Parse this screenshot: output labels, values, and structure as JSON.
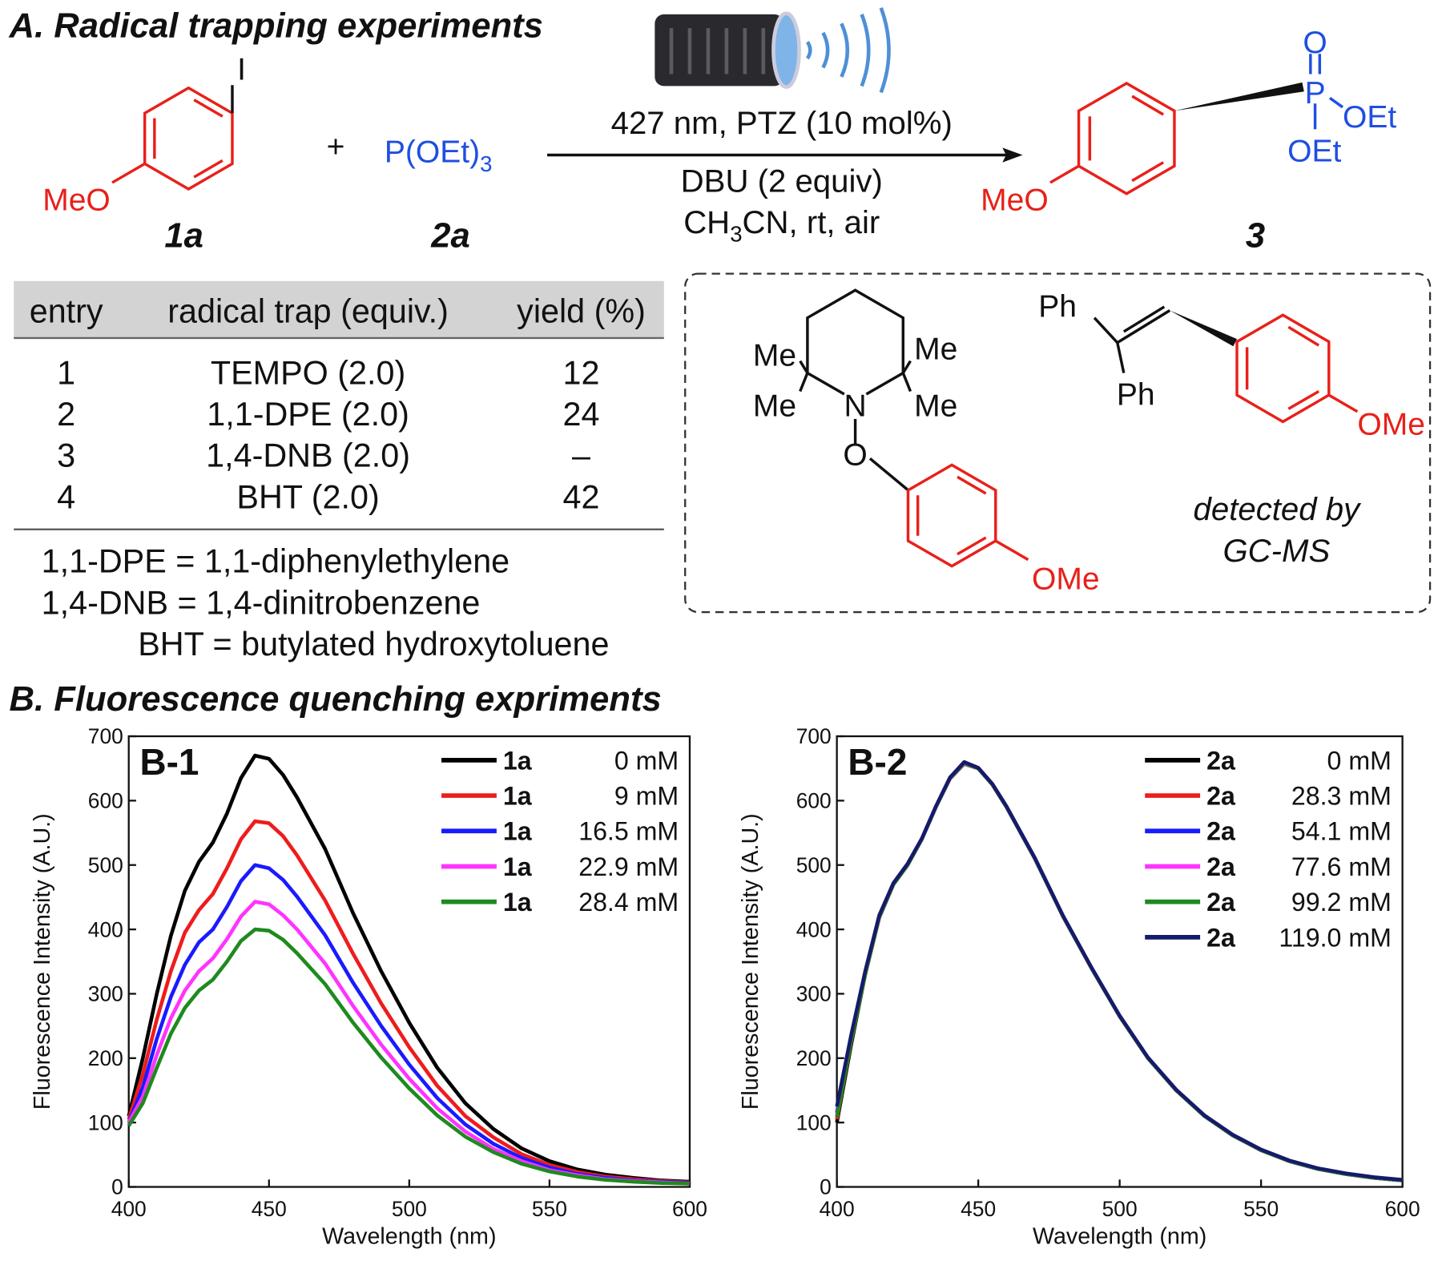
{
  "scheme": {
    "title": "A. Radical trapping experiments",
    "substrate": {
      "leaving_group": "I",
      "substituent": "MeO",
      "label": "1a"
    },
    "plus": "+",
    "reagent": {
      "formula": "P(OEt)",
      "subscript": "3",
      "label": "2a"
    },
    "conditions": {
      "line1": "427 nm, PTZ (10 mol%)",
      "line2": "DBU (2 equiv)",
      "line3_a": "CH",
      "line3_sub": "3",
      "line3_b": "CN, rt, air"
    },
    "product": {
      "oxygen": "O",
      "phosphorus": "P",
      "ethoxy1": "OEt",
      "ethoxy2": "OEt",
      "substituent": "MeO",
      "label": "3"
    }
  },
  "table": {
    "header": [
      "entry",
      "radical trap (equiv.)",
      "yield (%)"
    ],
    "rows": [
      [
        1,
        "TEMPO (2.0)",
        12
      ],
      [
        2,
        "1,1-DPE (2.0)",
        24
      ],
      [
        3,
        "1,4-DNB (2.0)",
        "–"
      ],
      [
        4,
        "BHT (2.0)",
        42
      ]
    ],
    "notes": [
      "1,1-DPE = 1,1-diphenylethylene",
      "1,4-DNB = 1,4-dinitrobenzene",
      "BHT = butylated hydroxytoluene"
    ]
  },
  "adducts": {
    "tempo": {
      "methyls": [
        "Me",
        "Me",
        "Me",
        "Me"
      ],
      "nitrogen": "N",
      "oxygen": "O",
      "methoxy": "OMe"
    },
    "dpe": {
      "phenyls": [
        "Ph",
        "Ph"
      ],
      "methoxy": "OMe"
    },
    "note": [
      "detected by",
      "GC-MS"
    ]
  },
  "section_b_title": "B. Fluorescence quenching expriments",
  "chart_data": [
    {
      "type": "line",
      "panel_label": "B-1",
      "xlabel": "Wavelength (nm)",
      "ylabel": "Fluorescence Intensity (A.U.)",
      "xlim": [
        400,
        600
      ],
      "ylim": [
        0,
        700
      ],
      "xticks": [
        400,
        450,
        500,
        550,
        600
      ],
      "yticks": [
        0,
        100,
        200,
        300,
        400,
        500,
        600,
        700
      ],
      "x": [
        400,
        405,
        410,
        415,
        420,
        425,
        430,
        435,
        440,
        445,
        450,
        455,
        460,
        470,
        480,
        490,
        500,
        510,
        520,
        530,
        540,
        550,
        560,
        570,
        580,
        590,
        600
      ],
      "series": [
        {
          "name": "1a",
          "label": "0 mM",
          "color": "#000000",
          "values": [
            110,
            200,
            300,
            390,
            460,
            505,
            535,
            580,
            635,
            670,
            665,
            640,
            605,
            525,
            425,
            335,
            255,
            185,
            130,
            90,
            60,
            40,
            27,
            19,
            14,
            10,
            8
          ]
        },
        {
          "name": "1a",
          "label": "9 mM",
          "color": "#ee1c1c",
          "values": [
            105,
            175,
            260,
            335,
            395,
            430,
            455,
            495,
            540,
            568,
            565,
            545,
            515,
            445,
            362,
            285,
            217,
            157,
            110,
            77,
            51,
            34,
            23,
            16,
            12,
            9,
            7
          ]
        },
        {
          "name": "1a",
          "label": "16.5 mM",
          "color": "#1a1aff",
          "values": [
            100,
            155,
            230,
            295,
            345,
            380,
            400,
            435,
            475,
            500,
            495,
            477,
            451,
            391,
            317,
            250,
            190,
            138,
            97,
            67,
            45,
            30,
            20,
            14,
            10,
            8,
            6
          ]
        },
        {
          "name": "1a",
          "label": "22.9 mM",
          "color": "#ff33ff",
          "values": [
            100,
            140,
            205,
            262,
            305,
            335,
            355,
            385,
            420,
            443,
            439,
            422,
            400,
            347,
            281,
            221,
            168,
            122,
            86,
            59,
            40,
            26,
            18,
            12,
            9,
            7,
            5
          ]
        },
        {
          "name": "1a",
          "label": "28.4 mM",
          "color": "#1e8a1e",
          "values": [
            95,
            130,
            185,
            238,
            278,
            305,
            322,
            350,
            382,
            400,
            398,
            384,
            363,
            315,
            255,
            201,
            153,
            111,
            78,
            54,
            36,
            24,
            16,
            11,
            8,
            6,
            5
          ]
        }
      ]
    },
    {
      "type": "line",
      "panel_label": "B-2",
      "xlabel": "Wavelength (nm)",
      "ylabel": "Fluorescence Intensity (A.U.)",
      "xlim": [
        400,
        600
      ],
      "ylim": [
        0,
        700
      ],
      "xticks": [
        400,
        450,
        500,
        550,
        600
      ],
      "yticks": [
        0,
        100,
        200,
        300,
        400,
        500,
        600,
        700
      ],
      "x": [
        400,
        405,
        410,
        415,
        420,
        425,
        430,
        435,
        440,
        445,
        450,
        455,
        460,
        470,
        480,
        490,
        500,
        510,
        520,
        530,
        540,
        550,
        560,
        570,
        580,
        590,
        600
      ],
      "series": [
        {
          "name": "2a",
          "label": "0 mM",
          "color": "#000000",
          "values": [
            100,
            220,
            330,
            420,
            470,
            500,
            540,
            590,
            635,
            658,
            650,
            625,
            590,
            510,
            420,
            340,
            265,
            200,
            150,
            110,
            80,
            57,
            40,
            28,
            20,
            14,
            10
          ]
        },
        {
          "name": "2a",
          "label": "28.3 mM",
          "color": "#ee1c1c",
          "values": [
            105,
            225,
            330,
            418,
            470,
            500,
            540,
            590,
            634,
            657,
            650,
            625,
            590,
            510,
            420,
            340,
            265,
            200,
            150,
            110,
            80,
            57,
            40,
            28,
            20,
            14,
            10
          ]
        },
        {
          "name": "2a",
          "label": "54.1 mM",
          "color": "#1a1aff",
          "values": [
            115,
            230,
            332,
            420,
            471,
            501,
            540,
            590,
            635,
            658,
            650,
            625,
            590,
            510,
            420,
            340,
            265,
            200,
            150,
            110,
            80,
            57,
            40,
            28,
            20,
            14,
            10
          ]
        },
        {
          "name": "2a",
          "label": "77.6 mM",
          "color": "#ff33ff",
          "values": [
            110,
            228,
            331,
            419,
            470,
            500,
            540,
            590,
            635,
            657,
            650,
            625,
            590,
            510,
            420,
            340,
            265,
            200,
            150,
            110,
            80,
            57,
            40,
            28,
            20,
            14,
            10
          ]
        },
        {
          "name": "2a",
          "label": "99.2 mM",
          "color": "#1e8a1e",
          "values": [
            108,
            226,
            330,
            419,
            470,
            500,
            540,
            590,
            635,
            658,
            650,
            625,
            590,
            510,
            420,
            340,
            265,
            200,
            150,
            110,
            80,
            57,
            40,
            28,
            20,
            14,
            10
          ]
        },
        {
          "name": "2a",
          "label": "119.0 mM",
          "color": "#161a6b",
          "values": [
            125,
            235,
            335,
            422,
            472,
            502,
            541,
            591,
            636,
            660,
            651,
            626,
            591,
            511,
            421,
            341,
            266,
            201,
            151,
            111,
            81,
            58,
            41,
            29,
            21,
            15,
            11
          ]
        }
      ]
    }
  ]
}
